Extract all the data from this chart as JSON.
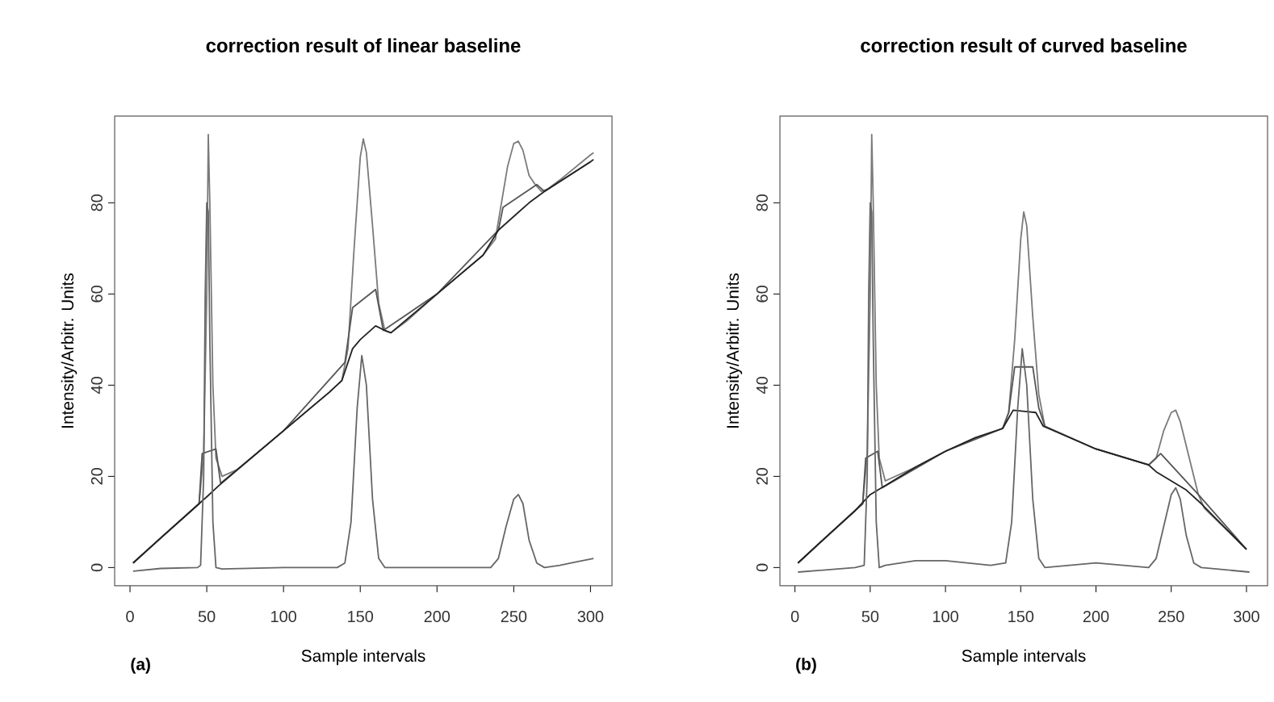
{
  "chart_data": [
    {
      "type": "line",
      "title": "correction result of linear baseline",
      "xlabel": "Sample intervals",
      "ylabel": "Intensity/Arbitr. Units",
      "annotations": [
        "(a)"
      ],
      "xlim": [
        -10,
        314
      ],
      "ylim": [
        -4,
        99
      ],
      "xticks": [
        0,
        50,
        100,
        150,
        200,
        250,
        300
      ],
      "yticks": [
        0,
        20,
        40,
        60,
        80
      ],
      "grid": false,
      "series": [
        {
          "color": "#7a7a7a",
          "x": [
            2,
            20,
            40,
            45,
            48,
            50,
            51,
            52,
            54,
            56,
            60,
            70,
            100,
            130,
            138,
            142,
            146,
            150,
            152,
            154,
            158,
            162,
            166,
            170,
            180,
            200,
            230,
            238,
            242,
            246,
            250,
            253,
            256,
            260,
            264,
            268,
            272,
            280,
            300,
            302
          ],
          "values": [
            1,
            6.5,
            12.5,
            14,
            25,
            60,
            95,
            80,
            40,
            24,
            20,
            21.5,
            30,
            38.5,
            41,
            48,
            70,
            90,
            94,
            91,
            75,
            58,
            52,
            51.5,
            54,
            60,
            68.5,
            72,
            80,
            88,
            93,
            93.5,
            91.5,
            86,
            84,
            82.5,
            83,
            85,
            90.5,
            91
          ]
        },
        {
          "color": "#555555",
          "x": [
            2,
            45,
            47,
            56,
            59,
            100,
            140,
            145,
            160,
            165,
            200,
            240,
            243,
            265,
            270,
            300
          ],
          "values": [
            1,
            14,
            25,
            26,
            18.5,
            30,
            45,
            57,
            61,
            52,
            60,
            74,
            79,
            84,
            82.5,
            89
          ]
        },
        {
          "color": "#222222",
          "x": [
            2,
            20,
            40,
            50,
            58,
            100,
            130,
            138,
            145,
            150,
            160,
            166,
            170,
            200,
            230,
            240,
            250,
            260,
            270,
            300,
            302
          ],
          "values": [
            1,
            6.5,
            12.5,
            15.5,
            18,
            30,
            38.5,
            41,
            48,
            50,
            53,
            52,
            51.5,
            60,
            68.5,
            74,
            77,
            80,
            82.5,
            89,
            89.5
          ]
        },
        {
          "color": "#666666",
          "x": [
            2,
            20,
            44,
            46,
            48,
            49,
            50,
            51,
            52,
            54,
            56,
            60,
            100,
            135,
            140,
            144,
            148,
            151,
            154,
            158,
            162,
            166,
            200,
            235,
            240,
            245,
            250,
            253,
            256,
            260,
            265,
            270,
            280,
            290,
            302
          ],
          "values": [
            -0.8,
            -0.2,
            0,
            0.5,
            20,
            60,
            80,
            78,
            50,
            10,
            0,
            -0.3,
            0,
            0,
            1,
            10,
            35,
            46.5,
            40,
            15,
            2,
            0,
            0,
            0,
            2,
            9,
            15,
            16,
            14,
            6,
            1,
            0,
            0.5,
            1.2,
            2
          ]
        }
      ]
    },
    {
      "type": "line",
      "title": "correction result of curved baseline",
      "xlabel": "Sample intervals",
      "ylabel": "Intensity/Arbitr. Units",
      "annotations": [
        "(b)"
      ],
      "xlim": [
        -10,
        314
      ],
      "ylim": [
        -4,
        99
      ],
      "xticks": [
        0,
        50,
        100,
        150,
        200,
        250,
        300
      ],
      "yticks": [
        0,
        20,
        40,
        60,
        80
      ],
      "grid": false,
      "series": [
        {
          "color": "#7a7a7a",
          "x": [
            2,
            20,
            40,
            45,
            48,
            50,
            51,
            52,
            54,
            56,
            60,
            80,
            100,
            120,
            138,
            142,
            146,
            150,
            152,
            154,
            158,
            162,
            166,
            200,
            235,
            240,
            245,
            250,
            253,
            256,
            262,
            268,
            272,
            300
          ],
          "values": [
            1,
            6.5,
            12.5,
            14,
            25,
            60,
            95,
            80,
            40,
            24,
            19,
            22,
            25.5,
            28.5,
            30.5,
            34,
            50,
            72,
            78,
            75,
            55,
            38,
            31,
            26,
            22.5,
            24,
            30,
            34,
            34.5,
            32,
            24,
            16,
            13,
            4
          ]
        },
        {
          "color": "#555555",
          "x": [
            2,
            45,
            47,
            55,
            58,
            100,
            138,
            142,
            146,
            158,
            162,
            166,
            200,
            235,
            243,
            268,
            300
          ],
          "values": [
            1,
            14,
            24,
            25.5,
            17.5,
            25.5,
            30.5,
            34,
            44,
            44,
            35,
            31,
            26,
            22.5,
            25,
            16,
            4
          ]
        },
        {
          "color": "#222222",
          "x": [
            2,
            20,
            40,
            50,
            60,
            80,
            100,
            120,
            138,
            145,
            160,
            165,
            200,
            235,
            240,
            260,
            270,
            300
          ],
          "values": [
            1,
            6.5,
            12.5,
            16,
            18,
            22,
            25.5,
            28.5,
            30.5,
            34.5,
            34,
            31,
            26,
            22.5,
            21,
            17,
            14,
            4
          ]
        },
        {
          "color": "#666666",
          "x": [
            2,
            40,
            46,
            48,
            49,
            50,
            51,
            52,
            54,
            56,
            60,
            80,
            100,
            130,
            140,
            144,
            148,
            151,
            154,
            158,
            162,
            166,
            200,
            235,
            240,
            245,
            250,
            253,
            256,
            260,
            265,
            270,
            302
          ],
          "values": [
            -1,
            0,
            0.5,
            20,
            60,
            80,
            78,
            50,
            10,
            0,
            0.5,
            1.5,
            1.5,
            0.5,
            1,
            10,
            35,
            48,
            40,
            15,
            2,
            0,
            1,
            0,
            2,
            9,
            16,
            17.5,
            15,
            7,
            1,
            0,
            -1
          ]
        }
      ]
    }
  ]
}
